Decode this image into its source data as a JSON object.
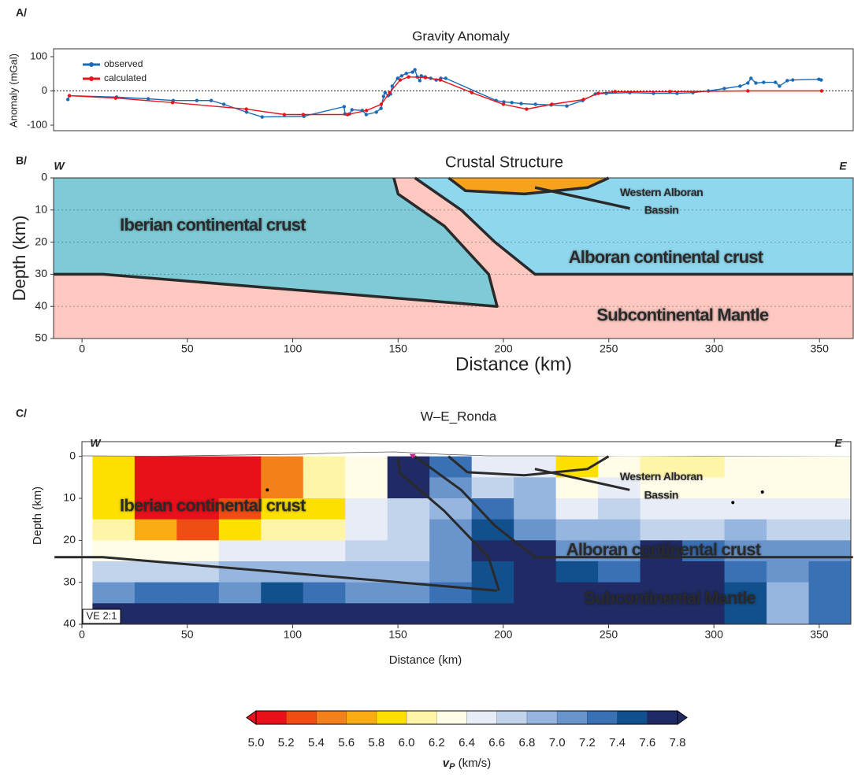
{
  "chart_data": [
    {
      "type": "line",
      "panel": "A/",
      "title": "Gravity Anomaly",
      "y_label": "Anomaly (mGal)",
      "xlim": [
        -13.5,
        366
      ],
      "ylim": [
        -100,
        100
      ],
      "yticks": [
        -100,
        0,
        100
      ],
      "zero_line": true,
      "legend": "upper left",
      "series": [
        {
          "name": "observed",
          "color": "#1a6bb5",
          "x": [
            -6.7,
            -6,
            16.4,
            31.4,
            43.3,
            54.5,
            61.3,
            67.3,
            78.1,
            85.5,
            105.3,
            124.4,
            124.8,
            127,
            128.1,
            133,
            134.9,
            139.7,
            141.9,
            143.1,
            143.8,
            145.3,
            146.4,
            147.2,
            149.8,
            151.7,
            153.9,
            156.9,
            158,
            159.1,
            160.3,
            161,
            162.9,
            165.5,
            168.1,
            170.3,
            172.6,
            196.5,
            200.2,
            204,
            208.4,
            215.2,
            222.6,
            230.1,
            237.6,
            243.6,
            248.8,
            260,
            271.2,
            282.4,
            289.9,
            297.3,
            304.8,
            312.3,
            316,
            317.5,
            319.8,
            323.5,
            329.1,
            331,
            334.7,
            337.3,
            349.7,
            350.8
          ],
          "values": [
            -25,
            -14,
            -18,
            -23,
            -28,
            -28,
            -28,
            -39,
            -62,
            -76,
            -74,
            -46,
            -67,
            -67,
            -55,
            -57,
            -69,
            -62,
            -51,
            -16,
            -5,
            -14,
            -9,
            14,
            37,
            44,
            51,
            55,
            62,
            41,
            30,
            44,
            41,
            37,
            32,
            37,
            37,
            -28,
            -32,
            -34,
            -37,
            -39,
            -41,
            -44,
            -28,
            -9,
            -7,
            -5,
            -7,
            -7,
            -5,
            0,
            7,
            14,
            23,
            37,
            23,
            25,
            25,
            14,
            30,
            32,
            34,
            32
          ]
        },
        {
          "name": "calculated",
          "color": "#e8141c",
          "x": [
            -6,
            16,
            43,
            78,
            96,
            105,
            126,
            135,
            142,
            146,
            151,
            155,
            163,
            170,
            185,
            200,
            211,
            223,
            238,
            245,
            253,
            279,
            316,
            351
          ],
          "values": [
            -14,
            -21,
            -34,
            -53,
            -69,
            -69,
            -69,
            -57,
            -39,
            -5,
            32,
            41,
            39,
            32,
            -5,
            -39,
            -53,
            -39,
            -25,
            -7,
            -2,
            -2,
            0,
            0
          ]
        }
      ]
    },
    {
      "type": "section",
      "panel": "B/",
      "title": "Crustal Structure",
      "x_label": "Distance (km)",
      "y_label": "Depth (km)",
      "xlim": [
        -13.5,
        366
      ],
      "ylim": [
        50,
        0
      ],
      "xticks": [
        0,
        50,
        100,
        150,
        200,
        250,
        300,
        350
      ],
      "yticks": [
        0,
        10,
        20,
        30,
        40,
        50
      ],
      "grid": true,
      "side_labels": [
        "W",
        "E"
      ],
      "regions": [
        {
          "name": "Subcontinental Mantle",
          "color": "#fcc8c0",
          "x": [
            -13.5,
            366,
            366,
            -13.5
          ],
          "y": [
            0,
            0,
            50,
            50
          ]
        },
        {
          "name": "Alboran continental crust",
          "color": "#8fd7ee",
          "x": [
            158,
            366,
            366,
            215,
            196,
            180
          ],
          "y": [
            0,
            0,
            30,
            30,
            20,
            10
          ]
        },
        {
          "name": "Iberian continental crust",
          "color": "#7ecad6",
          "x": [
            -13.5,
            148,
            150,
            172,
            193,
            197,
            10,
            -13.5
          ],
          "y": [
            0,
            0,
            5,
            15,
            30,
            40,
            30,
            30
          ]
        },
        {
          "color": "#f6a21c",
          "x": [
            174,
            250,
            240,
            210,
            182
          ],
          "y": [
            0,
            0,
            3,
            5,
            4
          ]
        }
      ],
      "lines": [
        {
          "x": [
            148,
            150,
            172,
            193,
            197,
            10,
            -13.5
          ],
          "y": [
            0,
            5,
            15,
            30,
            40,
            30,
            30
          ]
        },
        {
          "x": [
            158,
            180,
            196,
            215,
            366
          ],
          "y": [
            0,
            10,
            20,
            30,
            30
          ]
        },
        {
          "x": [
            174,
            182,
            210,
            240,
            250
          ],
          "y": [
            0,
            4,
            5,
            3,
            0
          ]
        },
        {
          "x": [
            215,
            260
          ],
          "y": [
            3,
            9.5
          ]
        }
      ],
      "annotation": {
        "lines": [
          "Western Alboran",
          "Bassin"
        ]
      }
    },
    {
      "type": "heatmap",
      "panel": "C/",
      "title": "W–E_Ronda",
      "x_label": "Distance (km)",
      "y_label": "Depth (km)",
      "xlim": [
        0,
        365
      ],
      "ylim": [
        40,
        -3.5
      ],
      "xticks": [
        0,
        50,
        100,
        150,
        200,
        250,
        300,
        350
      ],
      "yticks": [
        0,
        10,
        20,
        30,
        40
      ],
      "side_labels": [
        "W",
        "E"
      ],
      "note": "VE 2:1",
      "x_edges": [
        5,
        25,
        45,
        65,
        85,
        105,
        125,
        145,
        165,
        185,
        205,
        225,
        245,
        265,
        285,
        305,
        325,
        345,
        365
      ],
      "y_edges": [
        0,
        5,
        10,
        15,
        20,
        25,
        30,
        35,
        40
      ],
      "values": [
        [
          5.8,
          5.0,
          5.0,
          5.0,
          5.5,
          6.1,
          6.3,
          7.8,
          7.2,
          6.4,
          6.5,
          5.9,
          6.3,
          6.0,
          6.1,
          6.2,
          6.2,
          6.2
        ],
        [
          5.9,
          5.0,
          5.0,
          5.0,
          5.5,
          6.0,
          6.3,
          7.6,
          7.0,
          6.6,
          6.8,
          6.3,
          6.5,
          6.2,
          6.2,
          6.3,
          6.3,
          6.3
        ],
        [
          5.9,
          5.0,
          5.1,
          5.3,
          5.9,
          5.9,
          6.4,
          6.6,
          6.9,
          7.3,
          6.9,
          6.5,
          6.7,
          6.4,
          6.5,
          6.5,
          6.4,
          6.5
        ],
        [
          6.0,
          5.6,
          5.3,
          5.9,
          6.0,
          6.1,
          6.5,
          6.6,
          7.0,
          7.5,
          7.0,
          6.8,
          6.9,
          6.6,
          6.7,
          6.8,
          6.7,
          6.7
        ],
        [
          6.3,
          6.2,
          6.3,
          6.4,
          6.4,
          6.5,
          6.6,
          6.7,
          7.0,
          7.6,
          7.6,
          7.0,
          7.0,
          7.6,
          7.2,
          7.0,
          7.0,
          7.0
        ],
        [
          6.6,
          6.6,
          6.7,
          6.8,
          6.8,
          6.9,
          6.8,
          6.8,
          7.1,
          7.4,
          7.8,
          7.5,
          7.3,
          7.8,
          7.6,
          7.2,
          7.1,
          7.2
        ],
        [
          7.0,
          7.2,
          7.2,
          7.1,
          7.4,
          7.2,
          7.1,
          7.0,
          7.3,
          7.5,
          7.8,
          7.7,
          7.7,
          7.8,
          7.8,
          7.5,
          6.9,
          7.2
        ],
        [
          7.6,
          7.6,
          7.6,
          7.6,
          7.7,
          7.7,
          7.6,
          7.6,
          7.8,
          7.8,
          7.8,
          7.8,
          7.8,
          7.8,
          7.8,
          7.4,
          6.9,
          7.3
        ]
      ],
      "lines": [
        {
          "x": [
            -13,
            10,
            197
          ],
          "y": [
            24,
            24,
            32
          ]
        },
        {
          "x": [
            150,
            151,
            172,
            193,
            198
          ],
          "y": [
            0.5,
            4,
            13,
            24,
            32
          ]
        },
        {
          "x": [
            158,
            180,
            196,
            215,
            366
          ],
          "y": [
            0,
            8,
            16.5,
            24,
            24
          ]
        },
        {
          "x": [
            174,
            183,
            210,
            240,
            250
          ],
          "y": [
            0,
            3.8,
            4.5,
            3,
            0
          ]
        },
        {
          "x": [
            215,
            260
          ],
          "y": [
            3,
            8
          ]
        }
      ],
      "points": {
        "x": [
          88,
          309,
          323
        ],
        "y": [
          8,
          11,
          8.5
        ]
      },
      "region_labels": [
        "Iberian continental crust",
        "Alboran continental crust",
        "Subcontinental Mantle"
      ],
      "annotation": {
        "lines": [
          "Western Alboran",
          "Bassin"
        ]
      }
    },
    {
      "type": "colorbar",
      "label_symbol": "v",
      "label_subscript": "P",
      "label_unit": "(km/s)",
      "extend": "both",
      "clim": [
        5.0,
        7.8
      ],
      "ticks": [
        {
          "value": 5,
          "label": "5.0"
        },
        5.2,
        5.4,
        5.6,
        5.8,
        {
          "value": 6,
          "label": "6.0"
        },
        6.2,
        6.4,
        6.6,
        6.8,
        {
          "value": 7,
          "label": "7.0"
        },
        7.2,
        7.4,
        7.6,
        7.8
      ],
      "colors": [
        "#e8101a",
        "#ef4d14",
        "#f4801a",
        "#f9ad12",
        "#fde000",
        "#fff5a8",
        "#fffce8",
        "#e8ecf6",
        "#c2d3ec",
        "#97b6df",
        "#6a95cc",
        "#3a70b4",
        "#124f8d",
        "#202a64"
      ]
    }
  ]
}
